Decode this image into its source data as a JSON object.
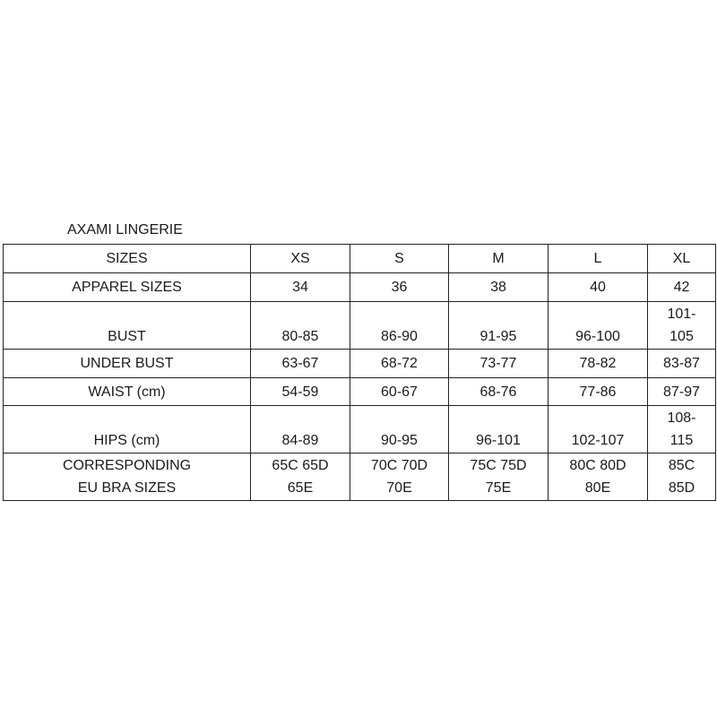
{
  "title": "AXAMI LINGERIE",
  "header": {
    "label": "SIZES",
    "sizes": [
      "XS",
      "S",
      "M",
      "L",
      "XL"
    ]
  },
  "rows": [
    {
      "label": "APPAREL SIZES",
      "values": [
        "34",
        "36",
        "38",
        "40",
        "42"
      ]
    },
    {
      "label": "BUST",
      "values": [
        "80-85",
        "86-90",
        "91-95",
        "96-100",
        [
          "101-",
          "105"
        ]
      ]
    },
    {
      "label": "UNDER BUST",
      "values": [
        "63-67",
        "68-72",
        "73-77",
        "78-82",
        "83-87"
      ]
    },
    {
      "label": "WAIST (cm)",
      "values": [
        "54-59",
        "60-67",
        "68-76",
        "77-86",
        "87-97"
      ]
    },
    {
      "label": "HIPS (cm)",
      "values": [
        "84-89",
        "90-95",
        "96-101",
        "102-107",
        [
          "108-",
          "115"
        ]
      ]
    },
    {
      "label": [
        "CORRESPONDING",
        "EU  BRA  SIZES"
      ],
      "values": [
        [
          "65C 65D",
          "65E"
        ],
        [
          "70C 70D",
          "70E"
        ],
        [
          "75C 75D",
          "75E"
        ],
        [
          "80C 80D",
          "80E"
        ],
        [
          "85C",
          "85D"
        ]
      ]
    }
  ]
}
